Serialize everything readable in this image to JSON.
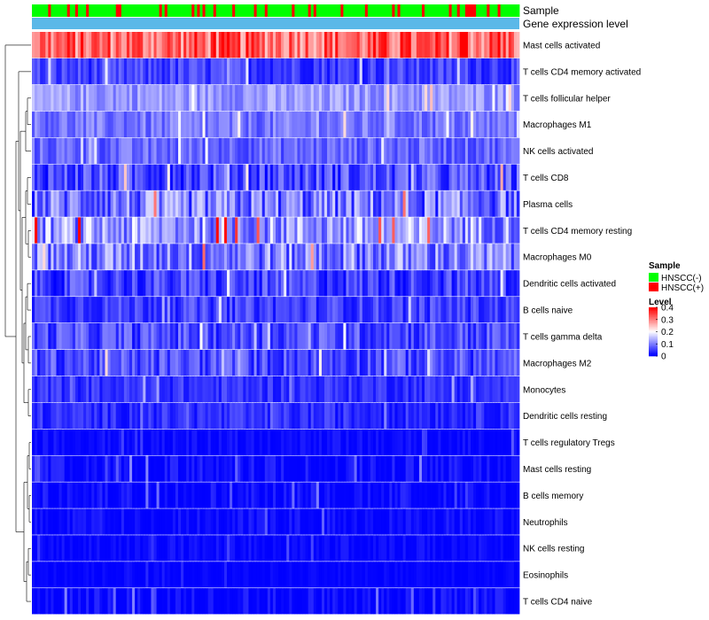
{
  "chart_data": {
    "type": "heatmap",
    "title": "",
    "annotation_labels": {
      "sample": "Sample",
      "expression": "Gene expression level"
    },
    "rows": [
      {
        "name": "Mast cells activated",
        "mean": 0.32,
        "spread": 0.08
      },
      {
        "name": "T cells CD4 memory activated",
        "mean": 0.05,
        "spread": 0.04
      },
      {
        "name": "T cells follicular helper",
        "mean": 0.12,
        "spread": 0.04
      },
      {
        "name": "Macrophages M1",
        "mean": 0.09,
        "spread": 0.04
      },
      {
        "name": "NK cells activated",
        "mean": 0.08,
        "spread": 0.04
      },
      {
        "name": "T cells CD8",
        "mean": 0.06,
        "spread": 0.06
      },
      {
        "name": "Plasma cells",
        "mean": 0.09,
        "spread": 0.08
      },
      {
        "name": "T cells CD4 memory resting",
        "mean": 0.12,
        "spread": 0.08
      },
      {
        "name": "Macrophages M0",
        "mean": 0.1,
        "spread": 0.08
      },
      {
        "name": "Dendritic cells activated",
        "mean": 0.05,
        "spread": 0.05
      },
      {
        "name": "B cells naive",
        "mean": 0.05,
        "spread": 0.04
      },
      {
        "name": "T cells gamma delta",
        "mean": 0.06,
        "spread": 0.05
      },
      {
        "name": "Macrophages M2",
        "mean": 0.06,
        "spread": 0.05
      },
      {
        "name": "Monocytes",
        "mean": 0.04,
        "spread": 0.03
      },
      {
        "name": "Dendritic cells resting",
        "mean": 0.035,
        "spread": 0.03
      },
      {
        "name": "T cells regulatory  Tregs",
        "mean": 0.005,
        "spread": 0.02
      },
      {
        "name": "Mast cells resting",
        "mean": 0.005,
        "spread": 0.03
      },
      {
        "name": "B cells memory",
        "mean": 0.005,
        "spread": 0.03
      },
      {
        "name": "Neutrophils",
        "mean": 0.005,
        "spread": 0.025
      },
      {
        "name": "NK cells resting",
        "mean": 0.003,
        "spread": 0.02
      },
      {
        "name": "Eosinophils",
        "mean": 0.002,
        "spread": 0.01
      },
      {
        "name": "T cells CD4 naive",
        "mean": 0.003,
        "spread": 0.03
      }
    ],
    "n_samples": 180,
    "sample_groups": [
      "HNSCC(-)",
      "HNSCC(+)"
    ],
    "group_fraction_positive": 0.22,
    "color_scale": {
      "min": 0,
      "max": 0.4,
      "low": "#0000FF",
      "mid": "#FFFFFF",
      "mid_value": 0.2,
      "high": "#FF0000"
    },
    "legend": {
      "sample_title": "Sample",
      "sample_entries": [
        {
          "label": "HNSCC(-)",
          "color": "#00FF00"
        },
        {
          "label": "HNSCC(+)",
          "color": "#FF0000"
        }
      ],
      "level_title": "Level",
      "level_ticks": [
        "0.4",
        "0.3",
        "0.2",
        "0.1",
        "0"
      ],
      "placement": "right"
    },
    "expression_bar_color": "#5BB8E8"
  }
}
